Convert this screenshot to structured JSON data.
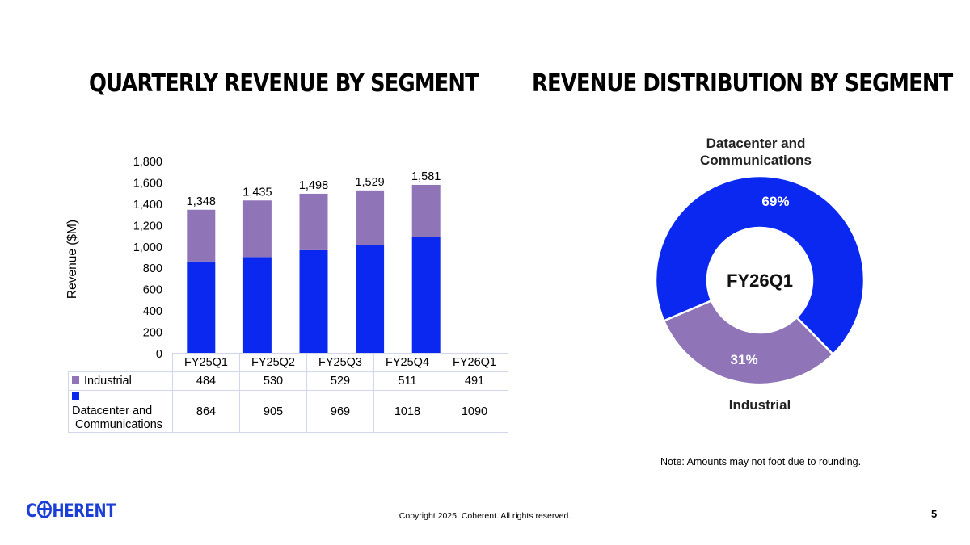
{
  "slide": {
    "title_left": "QUARTERLY REVENUE BY SEGMENT",
    "title_right": "REVENUE DISTRIBUTION BY SEGMENT",
    "note": "Note: Amounts may not foot due to rounding.",
    "copyright": "Copyright 2025, Coherent. All rights reserved.",
    "page_number": "5",
    "logo_text_before": "C",
    "logo_text_after": "HERENT"
  },
  "colors": {
    "industrial": "#8f74b8",
    "datacenter": "#0a28f0"
  },
  "chart_data": [
    {
      "type": "bar",
      "stacked": true,
      "title": "QUARTERLY REVENUE BY SEGMENT",
      "ylabel": "Revenue ($M)",
      "ylim": [
        0,
        1800
      ],
      "yticks": [
        0,
        200,
        400,
        600,
        800,
        1000,
        1200,
        1400,
        1600,
        1800
      ],
      "ytick_labels": [
        "0",
        "200",
        "400",
        "600",
        "800",
        "1,000",
        "1,200",
        "1,400",
        "1,600",
        "1,800"
      ],
      "categories": [
        "FY25Q1",
        "FY25Q2",
        "FY25Q3",
        "FY25Q4",
        "FY26Q1"
      ],
      "series": [
        {
          "name": "Datacenter and Communications",
          "values": [
            864,
            905,
            969,
            1018,
            1090
          ],
          "value_labels": [
            "864",
            "905",
            "969",
            "1018",
            "1090"
          ]
        },
        {
          "name": "Industrial",
          "values": [
            484,
            530,
            529,
            511,
            491
          ],
          "value_labels": [
            "484",
            "530",
            "529",
            "511",
            "491"
          ]
        }
      ],
      "totals": [
        1348,
        1435,
        1498,
        1529,
        1581
      ],
      "total_labels": [
        "1,348",
        "1,435",
        "1,498",
        "1,529",
        "1,581"
      ],
      "grid": false,
      "legend": "data table below chart"
    },
    {
      "type": "pie",
      "donut": true,
      "title": "REVENUE DISTRIBUTION BY SEGMENT",
      "center_label": "FY26Q1",
      "slices": [
        {
          "name": "Datacenter and Communications",
          "value": 69,
          "label": "69%"
        },
        {
          "name": "Industrial",
          "value": 31,
          "label": "31%"
        }
      ]
    }
  ]
}
